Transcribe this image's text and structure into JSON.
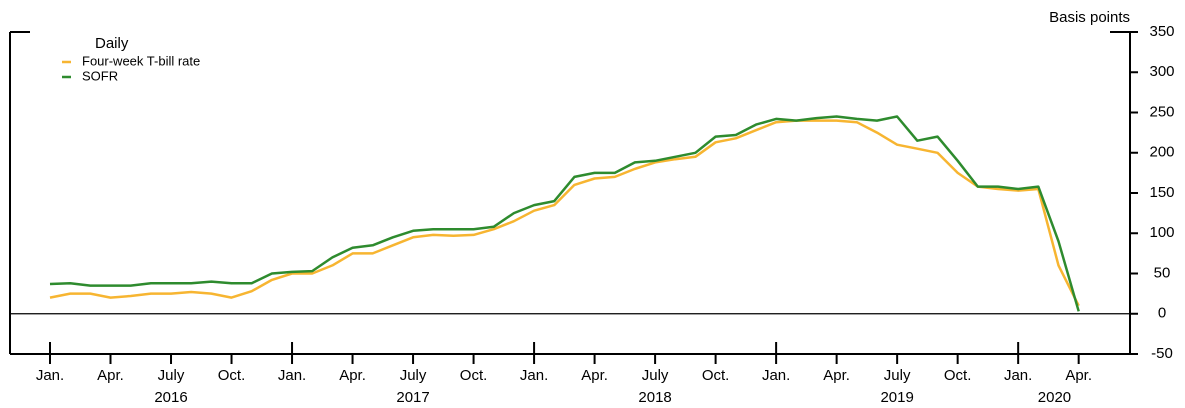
{
  "chart_data": {
    "type": "line",
    "y_label": "Basis points",
    "legend_title": "Daily",
    "legend": "upper left",
    "x": [
      "2016-01",
      "2016-02",
      "2016-03",
      "2016-04",
      "2016-05",
      "2016-06",
      "2016-07",
      "2016-08",
      "2016-09",
      "2016-10",
      "2016-11",
      "2016-12",
      "2017-01",
      "2017-02",
      "2017-03",
      "2017-04",
      "2017-05",
      "2017-06",
      "2017-07",
      "2017-08",
      "2017-09",
      "2017-10",
      "2017-11",
      "2017-12",
      "2018-01",
      "2018-02",
      "2018-03",
      "2018-04",
      "2018-05",
      "2018-06",
      "2018-07",
      "2018-08",
      "2018-09",
      "2018-10",
      "2018-11",
      "2018-12",
      "2019-01",
      "2019-02",
      "2019-03",
      "2019-04",
      "2019-05",
      "2019-06",
      "2019-07",
      "2019-08",
      "2019-09",
      "2019-10",
      "2019-11",
      "2019-12",
      "2020-01",
      "2020-02",
      "2020-03",
      "2020-04"
    ],
    "series": [
      {
        "name": "Four-week T-bill rate",
        "color": "#f7b531",
        "values": [
          20,
          25,
          25,
          20,
          22,
          25,
          25,
          27,
          25,
          20,
          28,
          42,
          50,
          50,
          60,
          75,
          75,
          85,
          95,
          98,
          97,
          98,
          105,
          115,
          128,
          135,
          160,
          168,
          170,
          180,
          188,
          192,
          195,
          213,
          218,
          228,
          238,
          240,
          240,
          240,
          238,
          225,
          210,
          205,
          200,
          175,
          158,
          155,
          153,
          155,
          60,
          10
        ]
      },
      {
        "name": "SOFR",
        "color": "#2e8b2e",
        "values": [
          37,
          38,
          35,
          35,
          35,
          38,
          38,
          38,
          40,
          38,
          38,
          50,
          52,
          53,
          70,
          82,
          85,
          95,
          103,
          105,
          105,
          105,
          108,
          125,
          135,
          140,
          170,
          175,
          175,
          188,
          190,
          195,
          200,
          220,
          222,
          235,
          242,
          240,
          243,
          245,
          242,
          240,
          245,
          215,
          220,
          190,
          158,
          158,
          155,
          158,
          90,
          3
        ]
      }
    ],
    "xticks": [
      {
        "value": "2016-01",
        "label": "Jan."
      },
      {
        "value": "2016-04",
        "label": "Apr."
      },
      {
        "value": "2016-07",
        "label": "July"
      },
      {
        "value": "2016-10",
        "label": "Oct."
      },
      {
        "value": "2017-01",
        "label": "Jan."
      },
      {
        "value": "2017-04",
        "label": "Apr."
      },
      {
        "value": "2017-07",
        "label": "July"
      },
      {
        "value": "2017-10",
        "label": "Oct."
      },
      {
        "value": "2018-01",
        "label": "Jan."
      },
      {
        "value": "2018-04",
        "label": "Apr."
      },
      {
        "value": "2018-07",
        "label": "July"
      },
      {
        "value": "2018-10",
        "label": "Oct."
      },
      {
        "value": "2019-01",
        "label": "Jan."
      },
      {
        "value": "2019-04",
        "label": "Apr."
      },
      {
        "value": "2019-07",
        "label": "July"
      },
      {
        "value": "2019-10",
        "label": "Oct."
      },
      {
        "value": "2020-01",
        "label": "Jan."
      },
      {
        "value": "2020-04",
        "label": "Apr."
      }
    ],
    "year_labels": [
      "2016",
      "2017",
      "2018",
      "2019",
      "2020"
    ],
    "ylim": [
      -50,
      350
    ],
    "yticks": [
      -50,
      0,
      50,
      100,
      150,
      200,
      250,
      300,
      350
    ]
  }
}
